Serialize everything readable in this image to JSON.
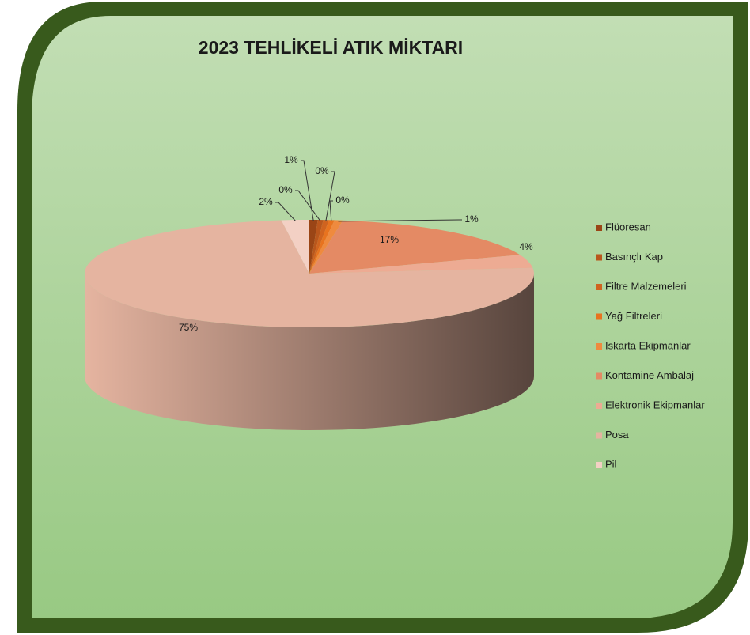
{
  "chart_data": {
    "type": "pie3d",
    "title": "2023 TEHLİKELİ ATIK MİKTARI",
    "categories": [
      "Flüoresan",
      "Basınçlı Kap",
      "Filtre Malzemeleri",
      "Yağ Filtreleri",
      "Iskarta Ekipmanlar",
      "Kontamine Ambalaj",
      "Elektronik Ekipmanlar",
      "Posa",
      "Pil"
    ],
    "values": [
      0.6,
      0.4,
      0.4,
      0.4,
      0.6,
      17,
      4,
      75,
      2
    ],
    "value_labels": [
      "1%",
      "0%",
      "0%",
      "0%",
      "1%",
      "17%",
      "4%",
      "75%",
      "2%"
    ],
    "colors": [
      "#9a4516",
      "#b9561c",
      "#d0631f",
      "#e8731f",
      "#ef8a3e",
      "#e48a64",
      "#edab93",
      "#e5b4a0",
      "#f3d0c4"
    ],
    "legend": "right"
  }
}
